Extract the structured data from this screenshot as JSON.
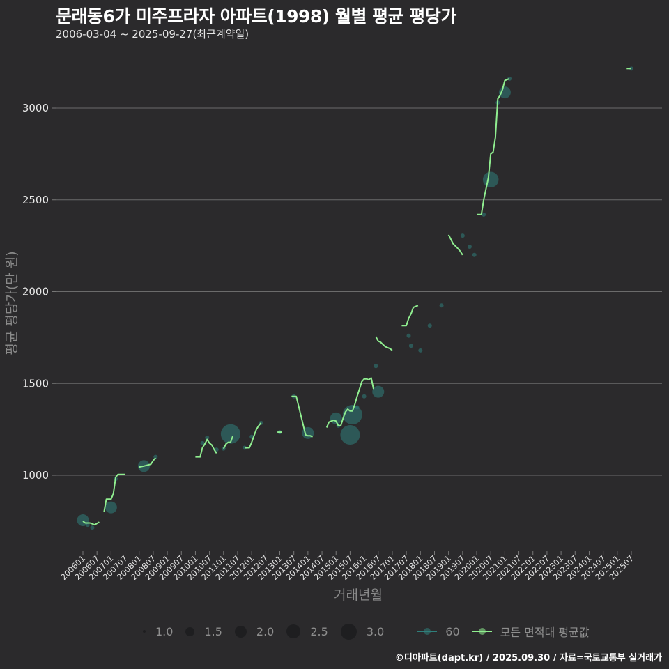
{
  "header": {
    "title": "문래동6가 미주프라자 아파트(1998) 월별 평균 평당가",
    "subtitle": "2006-03-04 ~ 2025-09-27(최근계약일)"
  },
  "caption": "©디아파트(dapt.kr) / 2025.09.30 / 자료=국토교통부 실거래가",
  "legend": {
    "size_items": [
      "1.0",
      "1.5",
      "2.0",
      "2.5",
      "3.0"
    ],
    "series_60": "60",
    "series_all": "모든 면적대 평균값"
  },
  "colors": {
    "background": "#2b2a2c",
    "grid": "#6b6b6b",
    "series_60": "#2f6f6c",
    "series_all": "#90ee90",
    "bubble": "#2e6b68"
  },
  "chart_data": {
    "type": "line",
    "title": "문래동6가 미주프라자 아파트(1998) 월별 평균 평당가",
    "subtitle": "2006-03-04 ~ 2025-09-27(최근계약일)",
    "xlabel": "거래년월",
    "ylabel": "평균 평당가(만 원)",
    "ylim": [
      600,
      3250
    ],
    "yticks": [
      1000,
      1500,
      2000,
      2500,
      3000
    ],
    "xticks": [
      "200601",
      "200607",
      "200701",
      "200707",
      "200801",
      "200807",
      "200901",
      "200907",
      "201001",
      "201007",
      "201101",
      "201107",
      "201201",
      "201207",
      "201301",
      "201307",
      "201401",
      "201407",
      "201501",
      "201507",
      "201601",
      "201607",
      "201701",
      "201707",
      "201801",
      "201807",
      "201901",
      "201907",
      "202001",
      "202007",
      "202101",
      "202107",
      "202201",
      "202207",
      "202301",
      "202307",
      "202401",
      "202407",
      "202501",
      "202507"
    ],
    "grid": true,
    "legend_position": "bottom",
    "size_legend": [
      1.0,
      1.5,
      2.0,
      2.5,
      3.0
    ],
    "series": [
      {
        "name": "모든 면적대 평균값",
        "segments": [
          [
            [
              "200601",
              750
            ],
            [
              "200602",
              740
            ],
            [
              "200604",
              740
            ],
            [
              "200606",
              730
            ],
            [
              "200608",
              745
            ]
          ],
          [
            [
              "200610",
              800
            ],
            [
              "200611",
              870
            ],
            [
              "200701",
              870
            ],
            [
              "200702",
              900
            ],
            [
              "200703",
              990
            ],
            [
              "200704",
              1005
            ],
            [
              "200707",
              1005
            ]
          ],
          [
            [
              "200801",
              1045
            ],
            [
              "200803",
              1050
            ],
            [
              "200806",
              1060
            ],
            [
              "200807",
              1080
            ],
            [
              "200808",
              1095
            ]
          ],
          [
            [
              "201001",
              1100
            ],
            [
              "201003",
              1100
            ],
            [
              "201004",
              1150
            ],
            [
              "201005",
              1170
            ],
            [
              "201006",
              1195
            ],
            [
              "201007",
              1175
            ],
            [
              "201008",
              1165
            ],
            [
              "201009",
              1140
            ],
            [
              "201010",
              1120
            ]
          ],
          [
            [
              "201101",
              1145
            ],
            [
              "201102",
              1170
            ],
            [
              "201103",
              1180
            ],
            [
              "201104",
              1180
            ],
            [
              "201105",
              1215
            ]
          ],
          [
            [
              "201110",
              1150
            ],
            [
              "201112",
              1150
            ],
            [
              "201201",
              1180
            ],
            [
              "201202",
              1215
            ],
            [
              "201203",
              1250
            ],
            [
              "201204",
              1270
            ],
            [
              "201205",
              1285
            ]
          ],
          [
            [
              "201212",
              1235
            ],
            [
              "201302",
              1235
            ]
          ],
          [
            [
              "201306",
              1430
            ],
            [
              "201308",
              1430
            ],
            [
              "201312",
              1220
            ],
            [
              "201401",
              1215
            ],
            [
              "201402",
              1215
            ],
            [
              "201403",
              1210
            ]
          ],
          [
            [
              "201409",
              1260
            ],
            [
              "201410",
              1290
            ],
            [
              "201411",
              1295
            ],
            [
              "201412",
              1300
            ],
            [
              "201501",
              1295
            ],
            [
              "201502",
              1270
            ],
            [
              "201503",
              1270
            ],
            [
              "201504",
              1310
            ],
            [
              "201505",
              1345
            ],
            [
              "201506",
              1360
            ],
            [
              "201507",
              1350
            ],
            [
              "201508",
              1350
            ],
            [
              "201509",
              1385
            ],
            [
              "201510",
              1430
            ],
            [
              "201511",
              1470
            ],
            [
              "201512",
              1510
            ],
            [
              "201601",
              1525
            ],
            [
              "201602",
              1525
            ],
            [
              "201603",
              1520
            ],
            [
              "201604",
              1530
            ],
            [
              "201605",
              1470
            ]
          ],
          [
            [
              "201606",
              1755
            ],
            [
              "201607",
              1730
            ],
            [
              "201608",
              1725
            ],
            [
              "201610",
              1700
            ],
            [
              "201612",
              1690
            ],
            [
              "201701",
              1680
            ]
          ],
          [
            [
              "201705",
              1815
            ],
            [
              "201707",
              1815
            ],
            [
              "201708",
              1855
            ],
            [
              "201709",
              1880
            ],
            [
              "201710",
              1915
            ],
            [
              "201712",
              1925
            ]
          ],
          [
            [
              "201901",
              2310
            ],
            [
              "201903",
              2260
            ],
            [
              "201905",
              2235
            ],
            [
              "201906",
              2220
            ],
            [
              "201907",
              2200
            ]
          ],
          [
            [
              "202001",
              2420
            ],
            [
              "202003",
              2420
            ],
            [
              "202004",
              2500
            ],
            [
              "202006",
              2620
            ],
            [
              "202007",
              2750
            ],
            [
              "202008",
              2760
            ],
            [
              "202009",
              2840
            ],
            [
              "202010",
              3050
            ],
            [
              "202011",
              3070
            ],
            [
              "202012",
              3100
            ],
            [
              "202101",
              3150
            ],
            [
              "202103",
              3160
            ]
          ],
          [
            [
              "202505",
              3215
            ],
            [
              "202507",
              3215
            ]
          ]
        ]
      },
      {
        "name": "60",
        "bubbles": [
          {
            "x": "200601",
            "y": 755,
            "size": 2.0
          },
          {
            "x": "200603",
            "y": 730,
            "size": 1.0
          },
          {
            "x": "200605",
            "y": 715,
            "size": 1.0
          },
          {
            "x": "200701",
            "y": 825,
            "size": 2.0
          },
          {
            "x": "200703",
            "y": 980,
            "size": 1.0
          },
          {
            "x": "200803",
            "y": 1050,
            "size": 2.0
          },
          {
            "x": "200808",
            "y": 1100,
            "size": 1.0
          },
          {
            "x": "201004",
            "y": 1175,
            "size": 1.0
          },
          {
            "x": "201006",
            "y": 1205,
            "size": 1.0
          },
          {
            "x": "201010",
            "y": 1140,
            "size": 1.0
          },
          {
            "x": "201104",
            "y": 1225,
            "size": 3.0
          },
          {
            "x": "201101",
            "y": 1145,
            "size": 1.0
          },
          {
            "x": "201110",
            "y": 1150,
            "size": 1.0
          },
          {
            "x": "201201",
            "y": 1210,
            "size": 1.0
          },
          {
            "x": "201205",
            "y": 1285,
            "size": 1.0
          },
          {
            "x": "201301",
            "y": 1235,
            "size": 1.0
          },
          {
            "x": "201307",
            "y": 1430,
            "size": 1.0
          },
          {
            "x": "201401",
            "y": 1230,
            "size": 2.0
          },
          {
            "x": "201501",
            "y": 1310,
            "size": 2.0
          },
          {
            "x": "201502",
            "y": 1270,
            "size": 1.0
          },
          {
            "x": "201507",
            "y": 1220,
            "size": 3.0
          },
          {
            "x": "201508",
            "y": 1330,
            "size": 3.0
          },
          {
            "x": "201510",
            "y": 1370,
            "size": 1.0
          },
          {
            "x": "201601",
            "y": 1430,
            "size": 1.0
          },
          {
            "x": "201606",
            "y": 1595,
            "size": 1.0
          },
          {
            "x": "201607",
            "y": 1455,
            "size": 2.0
          },
          {
            "x": "201708",
            "y": 1760,
            "size": 1.0
          },
          {
            "x": "201801",
            "y": 1680,
            "size": 1.0
          },
          {
            "x": "201709",
            "y": 1705,
            "size": 1.0
          },
          {
            "x": "201805",
            "y": 1815,
            "size": 1.0
          },
          {
            "x": "201810",
            "y": 1925,
            "size": 1.0
          },
          {
            "x": "201907",
            "y": 2305,
            "size": 1.0
          },
          {
            "x": "201912",
            "y": 2200,
            "size": 1.0
          },
          {
            "x": "201910",
            "y": 2245,
            "size": 1.0
          },
          {
            "x": "202004",
            "y": 2420,
            "size": 1.0
          },
          {
            "x": "202007",
            "y": 2610,
            "size": 2.5
          },
          {
            "x": "202010",
            "y": 3030,
            "size": 1.0
          },
          {
            "x": "202101",
            "y": 3085,
            "size": 2.0
          },
          {
            "x": "202103",
            "y": 3160,
            "size": 1.0
          },
          {
            "x": "202507",
            "y": 3215,
            "size": 1.0
          }
        ]
      }
    ]
  }
}
